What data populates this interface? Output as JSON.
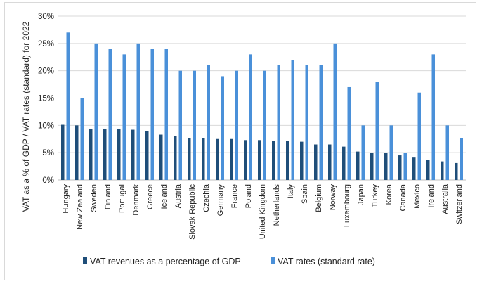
{
  "chart_data": {
    "type": "bar",
    "title": "",
    "xlabel": "",
    "ylabel": "VAT as a % of GDP / VAT rates (standard) for 2022",
    "ylim": [
      0,
      30
    ],
    "yticks": [
      "0%",
      "5%",
      "10%",
      "15%",
      "20%",
      "25%",
      "30%"
    ],
    "ytick_values": [
      0,
      5,
      10,
      15,
      20,
      25,
      30
    ],
    "grid": true,
    "legend_position": "bottom",
    "categories": [
      "Hungary",
      "New Zealand",
      "Sweden",
      "Finland",
      "Portugal",
      "Denmark",
      "Greece",
      "Iceland",
      "Austria",
      "Slovak Republic",
      "Czechia",
      "Germany",
      "France",
      "Poland",
      "United Kingdom",
      "Netherlands",
      "Italy",
      "Spain",
      "Belgium",
      "Norway",
      "Luxembourg",
      "Japan",
      "Turkey",
      "Korea",
      "Canada",
      "Mexico",
      "Ireland",
      "Australia",
      "Switzerland"
    ],
    "series": [
      {
        "name": "VAT revenues as a percentage of GDP",
        "color": "#1f4e79",
        "values": [
          10.1,
          10.0,
          9.4,
          9.4,
          9.4,
          9.2,
          9.0,
          8.3,
          8.0,
          7.7,
          7.6,
          7.5,
          7.5,
          7.3,
          7.3,
          7.1,
          7.1,
          7.0,
          6.5,
          6.5,
          6.1,
          5.2,
          5.0,
          4.9,
          4.5,
          4.1,
          3.7,
          3.4,
          3.1
        ]
      },
      {
        "name": "VAT rates (standard rate)",
        "color": "#4a90d9",
        "values": [
          27,
          15,
          25,
          24,
          23,
          25,
          24,
          24,
          20,
          20,
          21,
          19,
          20,
          23,
          20,
          21,
          22,
          21,
          21,
          25,
          17,
          10,
          18,
          10,
          5,
          16,
          23,
          10,
          7.7
        ]
      }
    ]
  }
}
